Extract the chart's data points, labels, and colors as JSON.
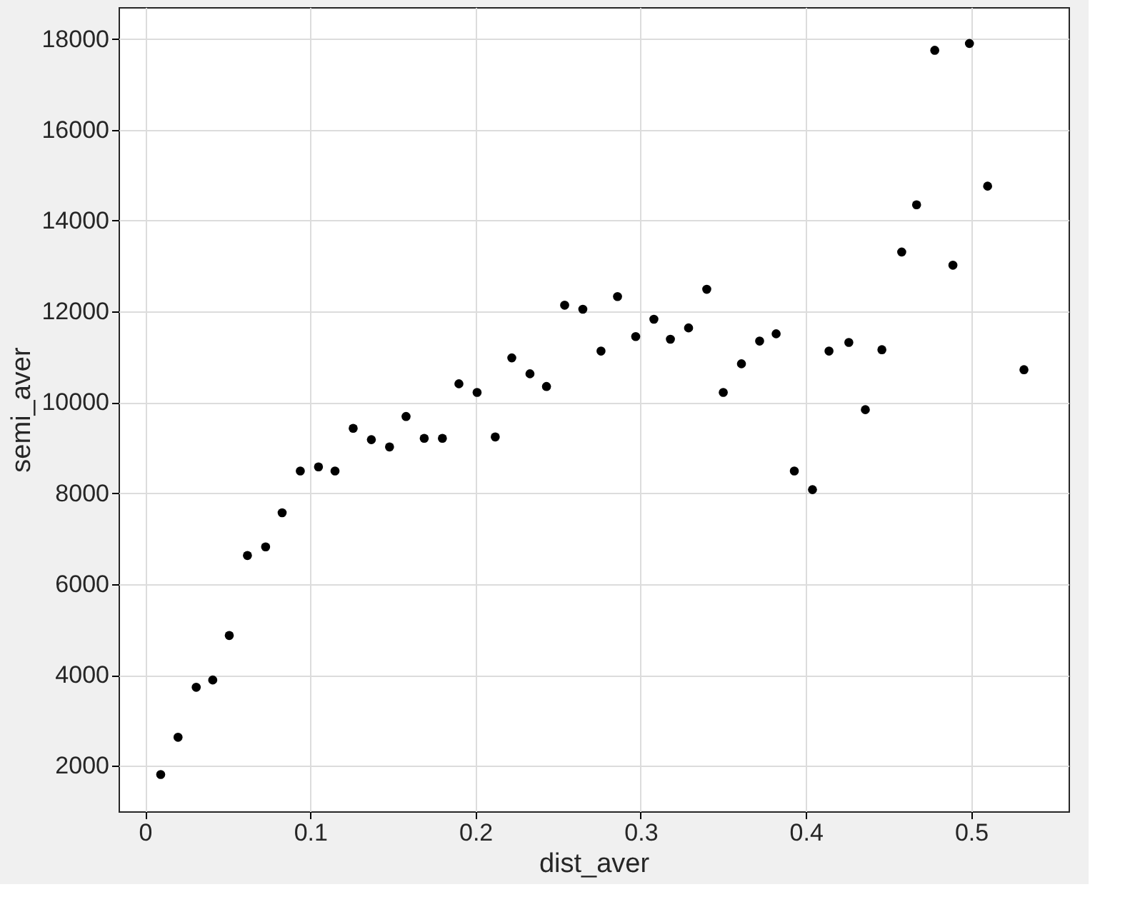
{
  "chart_data": {
    "type": "scatter",
    "xlabel": "dist_aver",
    "ylabel": "semi_aver",
    "xlim": [
      -0.016,
      0.559
    ],
    "ylim": [
      1000,
      18700
    ],
    "xticks": [
      0,
      0.1,
      0.2,
      0.3,
      0.4,
      0.5
    ],
    "yticks": [
      2000,
      4000,
      6000,
      8000,
      10000,
      12000,
      14000,
      16000,
      18000
    ],
    "grid": true,
    "marker": "circle",
    "series": [
      {
        "color": "#000000",
        "x": [
          0.0095,
          0.02,
          0.031,
          0.041,
          0.051,
          0.062,
          0.073,
          0.083,
          0.094,
          0.105,
          0.115,
          0.126,
          0.137,
          0.148,
          0.158,
          0.169,
          0.18,
          0.19,
          0.201,
          0.212,
          0.222,
          0.233,
          0.243,
          0.254,
          0.265,
          0.276,
          0.286,
          0.297,
          0.308,
          0.318,
          0.329,
          0.34,
          0.35,
          0.361,
          0.372,
          0.382,
          0.393,
          0.404,
          0.414,
          0.426,
          0.436,
          0.446,
          0.458,
          0.467,
          0.478,
          0.489,
          0.499,
          0.51,
          0.532
        ],
        "values": [
          1810,
          2630,
          3730,
          3890,
          4870,
          6630,
          6820,
          7570,
          8490,
          8580,
          8490,
          9430,
          9180,
          9020,
          9690,
          9210,
          9210,
          10410,
          10220,
          9240,
          10980,
          10630,
          10350,
          12140,
          12050,
          11130,
          12330,
          11450,
          11830,
          11390,
          11640,
          12490,
          10220,
          10850,
          11350,
          11510,
          8490,
          8080,
          11130,
          11320,
          9840,
          11160,
          13310,
          14350,
          17750,
          13020,
          17900,
          14760,
          10720
        ]
      }
    ]
  }
}
